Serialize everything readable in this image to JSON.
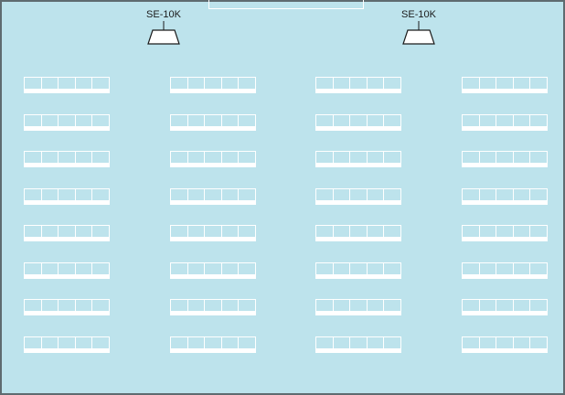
{
  "speakers": [
    {
      "label": "SE-10K"
    },
    {
      "label": "SE-10K"
    }
  ],
  "seating": {
    "columns": 4,
    "rows": 8,
    "seats_per_row": 5
  },
  "colors": {
    "floor": "#bde3ec",
    "border": "#5f6b70",
    "lines": "#ffffff",
    "speaker_fill": "#ffffff",
    "speaker_stroke": "#1b1b1b"
  }
}
